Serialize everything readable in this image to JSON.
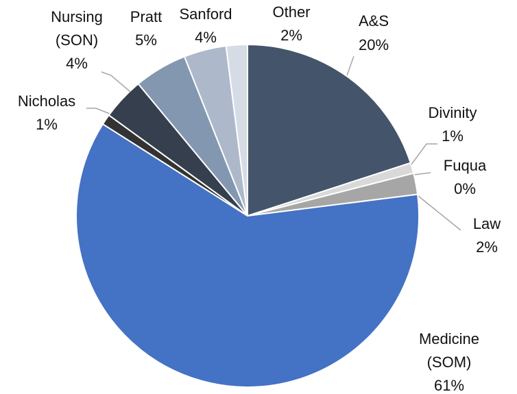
{
  "chart_data": {
    "type": "pie",
    "categories": [
      "A&S",
      "Divinity",
      "Fuqua",
      "Law",
      "Medicine (SOM)",
      "Nicholas",
      "Nursing (SON)",
      "Pratt",
      "Sanford",
      "Other"
    ],
    "values": [
      20,
      1,
      0,
      2,
      61,
      1,
      4,
      5,
      4,
      2
    ],
    "value_labels": [
      "20%",
      "1%",
      "0%",
      "2%",
      "61%",
      "1%",
      "4%",
      "5%",
      "4%",
      "2%"
    ],
    "colors": [
      "#44546a",
      "#d9d9d9",
      "#f2f2f2",
      "#a6a6a6",
      "#4472c4",
      "#333333",
      "#363f4e",
      "#8497b0",
      "#adb9ca",
      "#d6dce5"
    ]
  }
}
